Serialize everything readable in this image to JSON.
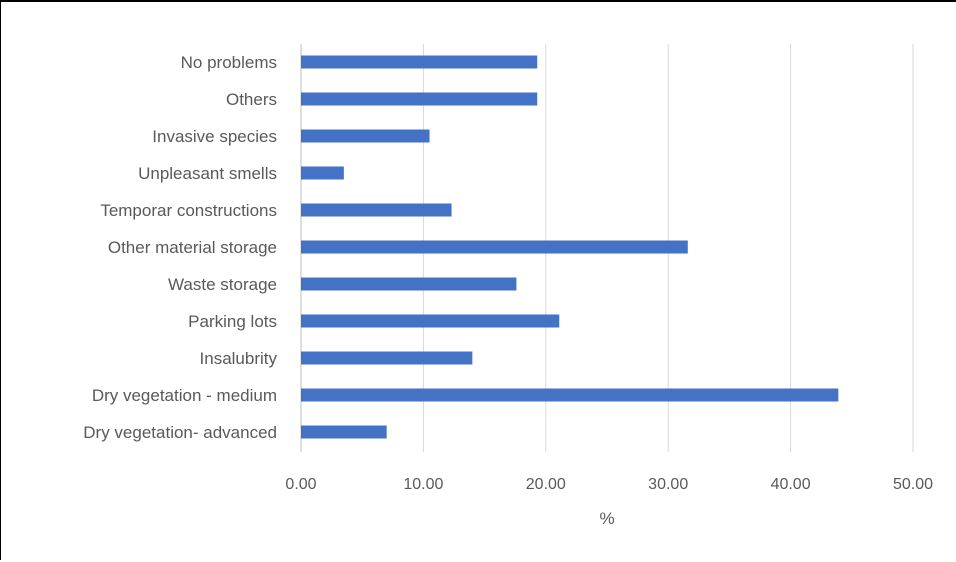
{
  "chart_data": {
    "type": "bar",
    "orientation": "horizontal",
    "categories": [
      "No problems",
      "Others",
      "Invasive species",
      "Unpleasant smells",
      "Temporar constructions",
      "Other material storage",
      "Waste storage",
      "Parking lots",
      "Insalubrity",
      "Dry vegetation - medium",
      "Dry vegetation- advanced"
    ],
    "values": [
      19.3,
      19.3,
      10.5,
      3.5,
      12.3,
      31.6,
      17.6,
      21.1,
      14.0,
      43.9,
      7.0
    ],
    "xlim": [
      0,
      50
    ],
    "xticks": [
      0,
      10,
      20,
      30,
      40,
      50
    ],
    "xtick_labels": [
      "0.00",
      "10.00",
      "20.00",
      "30.00",
      "40.00",
      "50.00"
    ],
    "xlabel": "%",
    "ylabel": "",
    "title": "",
    "grid": "vertical",
    "legend": "none",
    "bar_color": "#4472C4",
    "grid_color": "#D9D9D9",
    "text_color": "#595959"
  }
}
